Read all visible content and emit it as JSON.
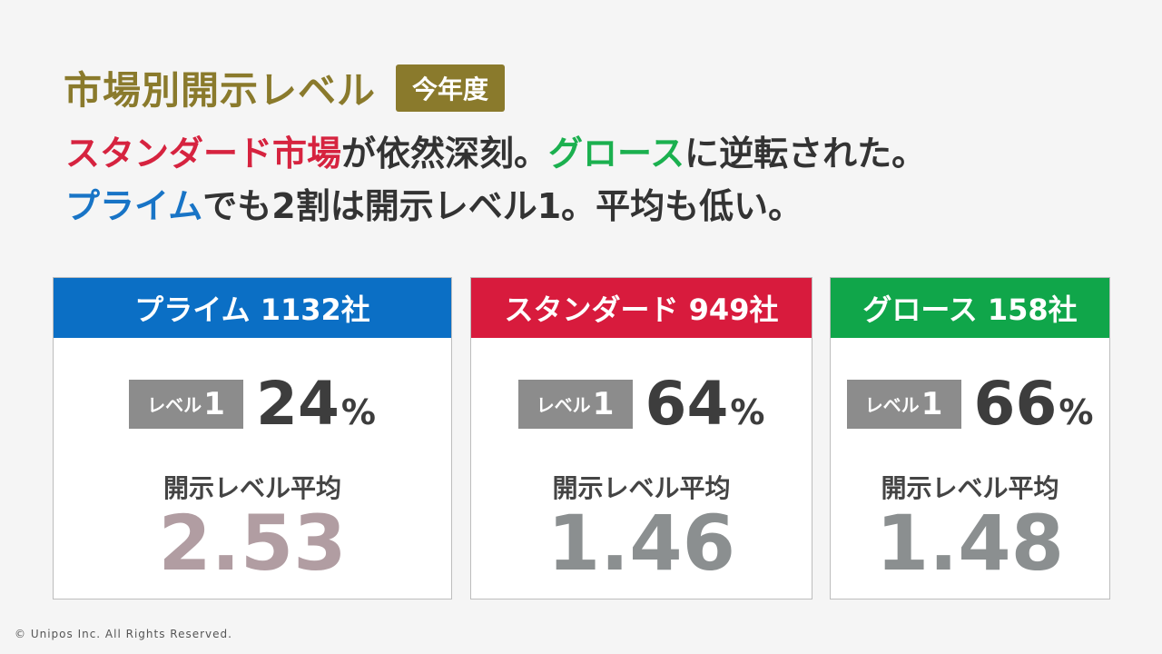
{
  "title": "市場別開示レベル",
  "badge": "今年度",
  "headline": {
    "line1": [
      {
        "text": "スタンダード市場",
        "color": "red"
      },
      {
        "text": "が依然深刻。",
        "color": "default"
      },
      {
        "text": "グロース",
        "color": "green"
      },
      {
        "text": "に逆転された。",
        "color": "default"
      }
    ],
    "line2": [
      {
        "text": "プライム",
        "color": "blue"
      },
      {
        "text": "でも2割は開示レベル1。平均も低い。",
        "color": "default"
      }
    ]
  },
  "colors": {
    "title": "#8a7a2c",
    "prime": "#0b6fc5",
    "standard": "#d81b3d",
    "growth": "#10a64a",
    "level_tag": "#8c8c8c",
    "prime_avg": "#b19da2",
    "other_avg": "#8b8f90"
  },
  "cards": [
    {
      "header": "プライム 1132社",
      "level_text": "レベル",
      "level_num": "1",
      "percent": "24",
      "percent_sign": "%",
      "avg_label": "開示レベル平均",
      "avg_value": "2.53"
    },
    {
      "header": "スタンダード 949社",
      "level_text": "レベル",
      "level_num": "1",
      "percent": "64",
      "percent_sign": "%",
      "avg_label": "開示レベル平均",
      "avg_value": "1.46"
    },
    {
      "header": "グロース 158社",
      "level_text": "レベル",
      "level_num": "1",
      "percent": "66",
      "percent_sign": "%",
      "avg_label": "開示レベル平均",
      "avg_value": "1.48"
    }
  ],
  "footer": "© Unipos Inc. All Rights Reserved."
}
